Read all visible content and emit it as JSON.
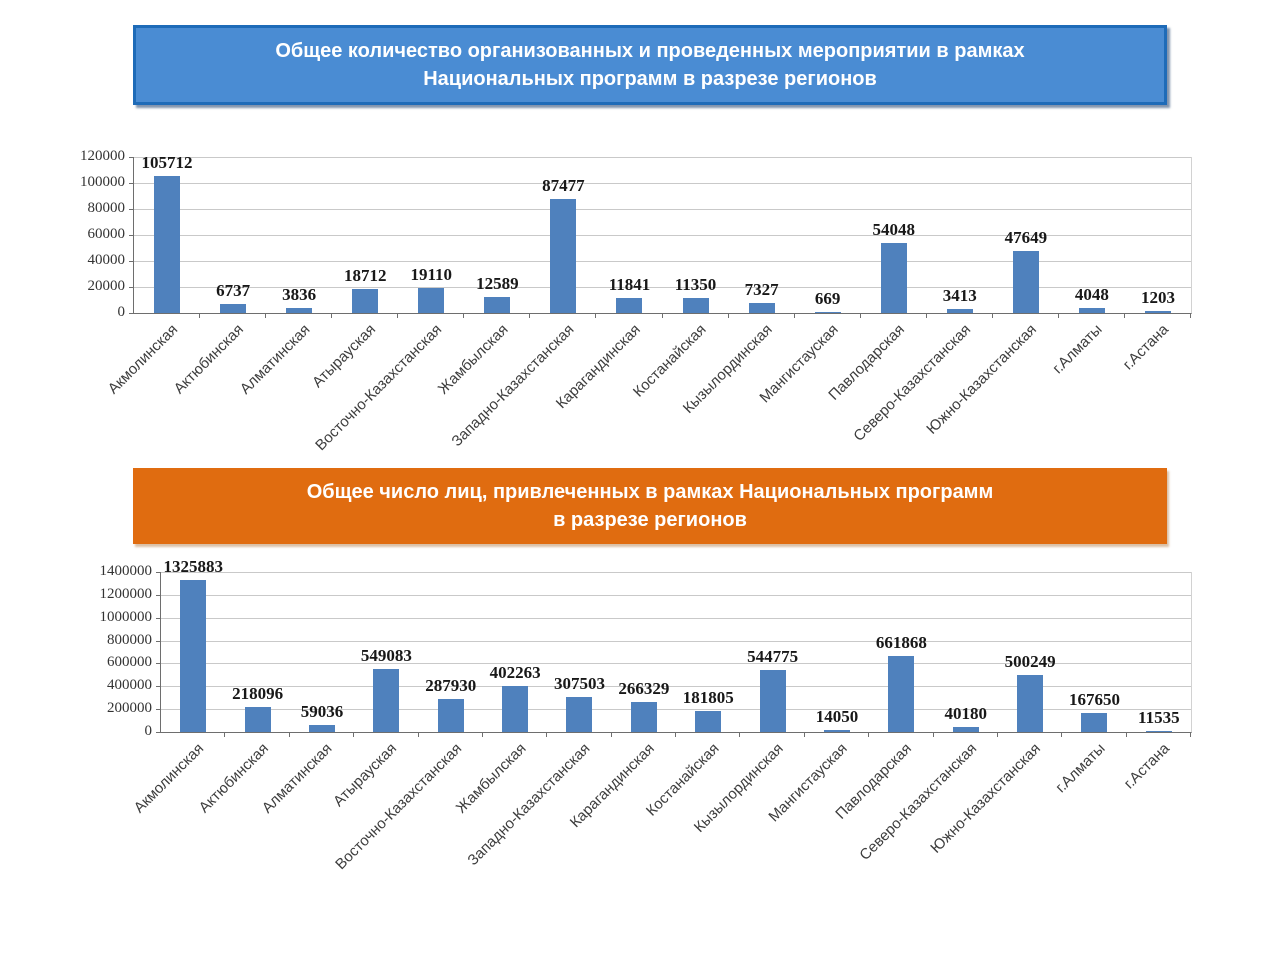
{
  "headers": [
    {
      "lines": [
        "Общее количество организованных и проведенных мероприятии в рамках",
        "Национальных программ в разрезе регионов"
      ],
      "bg": "#4a8cd3",
      "border": "#1e6bb8",
      "text_color": "#ffffff"
    },
    {
      "lines": [
        "Общее число лиц, привлеченных в рамках Национальных программ",
        "в разрезе регионов"
      ],
      "bg": "#e06c10",
      "border": "#e06c10",
      "text_color": "#ffffff"
    }
  ],
  "chart_data": [
    {
      "type": "bar",
      "title": "Общее количество организованных и проведенных мероприятии в рамках Национальных программ в разрезе регионов",
      "categories": [
        "Акмолинская",
        "Актюбинская",
        "Алматинская",
        "Атырауская",
        "Восточно-Казахстанская",
        "Жамбылская",
        "Западно-Казахстанская",
        "Карагандинская",
        "Костанайская",
        "Кызылординская",
        "Мангистауская",
        "Павлодарская",
        "Северо-Казахстанская",
        "Южно-Казахстанская",
        "г.Алматы",
        "г.Астана"
      ],
      "values": [
        105712,
        6737,
        3836,
        18712,
        19110,
        12589,
        87477,
        11841,
        11350,
        7327,
        669,
        54048,
        3413,
        47649,
        4048,
        1203
      ],
      "xlabel": "",
      "ylabel": "",
      "ylim": [
        0,
        120000
      ],
      "ytick_step": 20000,
      "grid": true,
      "legend": false,
      "bar_color": "#4f81bd"
    },
    {
      "type": "bar",
      "title": "Общее число лиц, привлеченных в рамках Национальных программ в разрезе регионов",
      "categories": [
        "Акмолинская",
        "Актюбинская",
        "Алматинская",
        "Атырауская",
        "Восточно-Казахстанская",
        "Жамбылская",
        "Западно-Казахстанская",
        "Карагандинская",
        "Костанайская",
        "Кызылординская",
        "Мангистауская",
        "Павлодарская",
        "Северо-Казахстанская",
        "Южно-Казахстанская",
        "г.Алматы",
        "г.Астана"
      ],
      "values": [
        1325883,
        218096,
        59036,
        549083,
        287930,
        402263,
        307503,
        266329,
        181805,
        544775,
        14050,
        661868,
        40180,
        500249,
        167650,
        11535
      ],
      "xlabel": "",
      "ylabel": "",
      "ylim": [
        0,
        1400000
      ],
      "ytick_step": 200000,
      "grid": true,
      "legend": false,
      "bar_color": "#4f81bd"
    }
  ]
}
